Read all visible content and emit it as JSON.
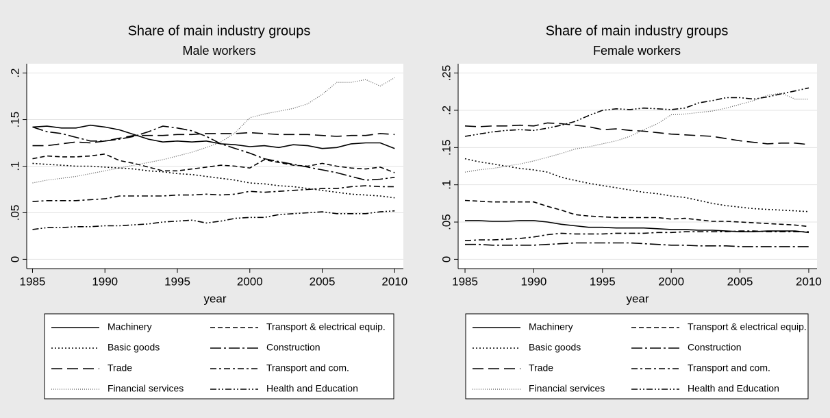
{
  "chart_data": [
    {
      "type": "line",
      "title": "Share of main industry groups",
      "subtitle": "Male workers",
      "x_label": "year",
      "x": [
        1985,
        1986,
        1987,
        1988,
        1989,
        1990,
        1991,
        1992,
        1993,
        1994,
        1995,
        1996,
        1997,
        1998,
        1999,
        2000,
        2001,
        2002,
        2003,
        2004,
        2005,
        2006,
        2007,
        2008,
        2009,
        2010
      ],
      "xlim": [
        1984.6,
        2010.6
      ],
      "xticks": [
        1985,
        1990,
        1995,
        2000,
        2005,
        2010
      ],
      "ylim": [
        -0.01,
        0.21
      ],
      "yticks": [
        0,
        {
          "value": 0.05,
          "label": ".05"
        },
        {
          "value": 0.1,
          "label": ".1"
        },
        {
          "value": 0.15,
          "label": ".15"
        },
        {
          "value": 0.2,
          "label": ".2"
        }
      ],
      "grid": true,
      "legend": "bottom",
      "series": [
        {
          "name": "Machinery",
          "color": "#000000",
          "values": [
            0.142,
            0.143,
            0.141,
            0.141,
            0.144,
            0.142,
            0.139,
            0.134,
            0.129,
            0.126,
            0.127,
            0.126,
            0.127,
            0.124,
            0.123,
            0.121,
            0.122,
            0.12,
            0.123,
            0.122,
            0.119,
            0.12,
            0.124,
            0.125,
            0.125,
            0.119
          ]
        },
        {
          "name": "Transport & electrical equip.",
          "color": "#000000",
          "values": [
            0.108,
            0.111,
            0.11,
            0.11,
            0.111,
            0.113,
            0.106,
            0.103,
            0.099,
            0.095,
            0.095,
            0.097,
            0.099,
            0.101,
            0.1,
            0.098,
            0.107,
            0.104,
            0.101,
            0.1,
            0.103,
            0.1,
            0.098,
            0.097,
            0.099,
            0.093
          ]
        },
        {
          "name": "Basic goods",
          "color": "#000000",
          "values": [
            0.103,
            0.102,
            0.101,
            0.1,
            0.1,
            0.099,
            0.098,
            0.097,
            0.095,
            0.094,
            0.092,
            0.091,
            0.089,
            0.087,
            0.085,
            0.082,
            0.081,
            0.079,
            0.078,
            0.076,
            0.074,
            0.072,
            0.07,
            0.069,
            0.068,
            0.066
          ]
        },
        {
          "name": "Construction",
          "color": "#000000",
          "values": [
            0.142,
            0.137,
            0.135,
            0.131,
            0.127,
            0.127,
            0.129,
            0.132,
            0.137,
            0.143,
            0.141,
            0.138,
            0.132,
            0.124,
            0.119,
            0.114,
            0.108,
            0.105,
            0.102,
            0.099,
            0.096,
            0.093,
            0.089,
            0.085,
            0.086,
            0.088
          ]
        },
        {
          "name": "Trade",
          "color": "#000000",
          "values": [
            0.122,
            0.122,
            0.124,
            0.126,
            0.125,
            0.127,
            0.13,
            0.133,
            0.133,
            0.133,
            0.134,
            0.134,
            0.135,
            0.135,
            0.135,
            0.136,
            0.135,
            0.134,
            0.134,
            0.134,
            0.133,
            0.132,
            0.133,
            0.133,
            0.135,
            0.134
          ]
        },
        {
          "name": "Transport and com.",
          "color": "#000000",
          "values": [
            0.062,
            0.063,
            0.063,
            0.063,
            0.064,
            0.065,
            0.068,
            0.068,
            0.068,
            0.068,
            0.069,
            0.069,
            0.07,
            0.069,
            0.07,
            0.073,
            0.072,
            0.073,
            0.074,
            0.075,
            0.076,
            0.076,
            0.078,
            0.079,
            0.078,
            0.078
          ]
        },
        {
          "name": "Financial services",
          "color": "#555555",
          "values": [
            0.082,
            0.085,
            0.087,
            0.089,
            0.092,
            0.095,
            0.098,
            0.101,
            0.104,
            0.107,
            0.111,
            0.115,
            0.12,
            0.126,
            0.136,
            0.152,
            0.156,
            0.159,
            0.162,
            0.167,
            0.177,
            0.19,
            0.19,
            0.193,
            0.186,
            0.195
          ]
        },
        {
          "name": "Health and Education",
          "color": "#000000",
          "values": [
            0.032,
            0.034,
            0.034,
            0.035,
            0.035,
            0.036,
            0.036,
            0.037,
            0.038,
            0.04,
            0.041,
            0.042,
            0.039,
            0.041,
            0.044,
            0.045,
            0.045,
            0.048,
            0.049,
            0.05,
            0.051,
            0.049,
            0.049,
            0.049,
            0.051,
            0.052
          ]
        }
      ]
    },
    {
      "type": "line",
      "title": "Share of main industry groups",
      "subtitle": "Female workers",
      "x_label": "year",
      "x": [
        1985,
        1986,
        1987,
        1988,
        1989,
        1990,
        1991,
        1992,
        1993,
        1994,
        1995,
        1996,
        1997,
        1998,
        1999,
        2000,
        2001,
        2002,
        2003,
        2004,
        2005,
        2006,
        2007,
        2008,
        2009,
        2010
      ],
      "xlim": [
        1984.5,
        2010.6
      ],
      "xticks": [
        1985,
        1990,
        1995,
        2000,
        2005,
        2010
      ],
      "ylim": [
        -0.0125,
        0.2625
      ],
      "yticks": [
        0,
        {
          "value": 0.05,
          "label": ".05"
        },
        {
          "value": 0.1,
          "label": ".1"
        },
        {
          "value": 0.15,
          "label": ".15"
        },
        {
          "value": 0.2,
          "label": ".2"
        },
        {
          "value": 0.25,
          "label": ".25"
        }
      ],
      "grid": true,
      "legend": "bottom",
      "series": [
        {
          "name": "Machinery",
          "color": "#000000",
          "values": [
            0.052,
            0.052,
            0.051,
            0.051,
            0.052,
            0.052,
            0.05,
            0.047,
            0.045,
            0.043,
            0.043,
            0.042,
            0.042,
            0.042,
            0.041,
            0.04,
            0.04,
            0.039,
            0.039,
            0.038,
            0.037,
            0.037,
            0.038,
            0.038,
            0.038,
            0.036
          ]
        },
        {
          "name": "Transport & electrical equip.",
          "color": "#000000",
          "values": [
            0.079,
            0.078,
            0.077,
            0.077,
            0.077,
            0.077,
            0.071,
            0.066,
            0.06,
            0.058,
            0.057,
            0.056,
            0.056,
            0.056,
            0.056,
            0.054,
            0.055,
            0.053,
            0.051,
            0.051,
            0.05,
            0.049,
            0.048,
            0.047,
            0.046,
            0.044
          ]
        },
        {
          "name": "Basic goods",
          "color": "#000000",
          "values": [
            0.135,
            0.131,
            0.128,
            0.125,
            0.122,
            0.12,
            0.117,
            0.11,
            0.106,
            0.102,
            0.099,
            0.096,
            0.093,
            0.09,
            0.088,
            0.085,
            0.083,
            0.079,
            0.075,
            0.072,
            0.07,
            0.068,
            0.067,
            0.066,
            0.065,
            0.064
          ]
        },
        {
          "name": "Construction",
          "color": "#000000",
          "values": [
            0.02,
            0.02,
            0.019,
            0.019,
            0.019,
            0.019,
            0.02,
            0.021,
            0.022,
            0.022,
            0.022,
            0.022,
            0.022,
            0.021,
            0.02,
            0.019,
            0.019,
            0.018,
            0.018,
            0.018,
            0.017,
            0.017,
            0.017,
            0.017,
            0.017,
            0.017
          ]
        },
        {
          "name": "Trade",
          "color": "#000000",
          "values": [
            0.179,
            0.178,
            0.179,
            0.179,
            0.18,
            0.179,
            0.183,
            0.182,
            0.18,
            0.178,
            0.174,
            0.175,
            0.173,
            0.172,
            0.17,
            0.168,
            0.167,
            0.166,
            0.165,
            0.162,
            0.159,
            0.157,
            0.155,
            0.156,
            0.156,
            0.154
          ]
        },
        {
          "name": "Transport and com.",
          "color": "#000000",
          "values": [
            0.025,
            0.026,
            0.026,
            0.027,
            0.028,
            0.03,
            0.033,
            0.035,
            0.034,
            0.034,
            0.034,
            0.035,
            0.035,
            0.035,
            0.036,
            0.036,
            0.037,
            0.037,
            0.037,
            0.037,
            0.038,
            0.038,
            0.037,
            0.037,
            0.037,
            0.037
          ]
        },
        {
          "name": "Financial services",
          "color": "#555555",
          "values": [
            0.117,
            0.12,
            0.122,
            0.125,
            0.128,
            0.132,
            0.137,
            0.142,
            0.148,
            0.151,
            0.155,
            0.159,
            0.165,
            0.174,
            0.182,
            0.194,
            0.195,
            0.197,
            0.199,
            0.203,
            0.208,
            0.213,
            0.22,
            0.223,
            0.215,
            0.215
          ]
        },
        {
          "name": "Health and Education",
          "color": "#000000",
          "values": [
            0.165,
            0.168,
            0.171,
            0.173,
            0.174,
            0.173,
            0.176,
            0.18,
            0.185,
            0.193,
            0.2,
            0.202,
            0.201,
            0.203,
            0.202,
            0.201,
            0.203,
            0.21,
            0.213,
            0.217,
            0.217,
            0.215,
            0.218,
            0.222,
            0.226,
            0.23
          ]
        }
      ]
    }
  ]
}
